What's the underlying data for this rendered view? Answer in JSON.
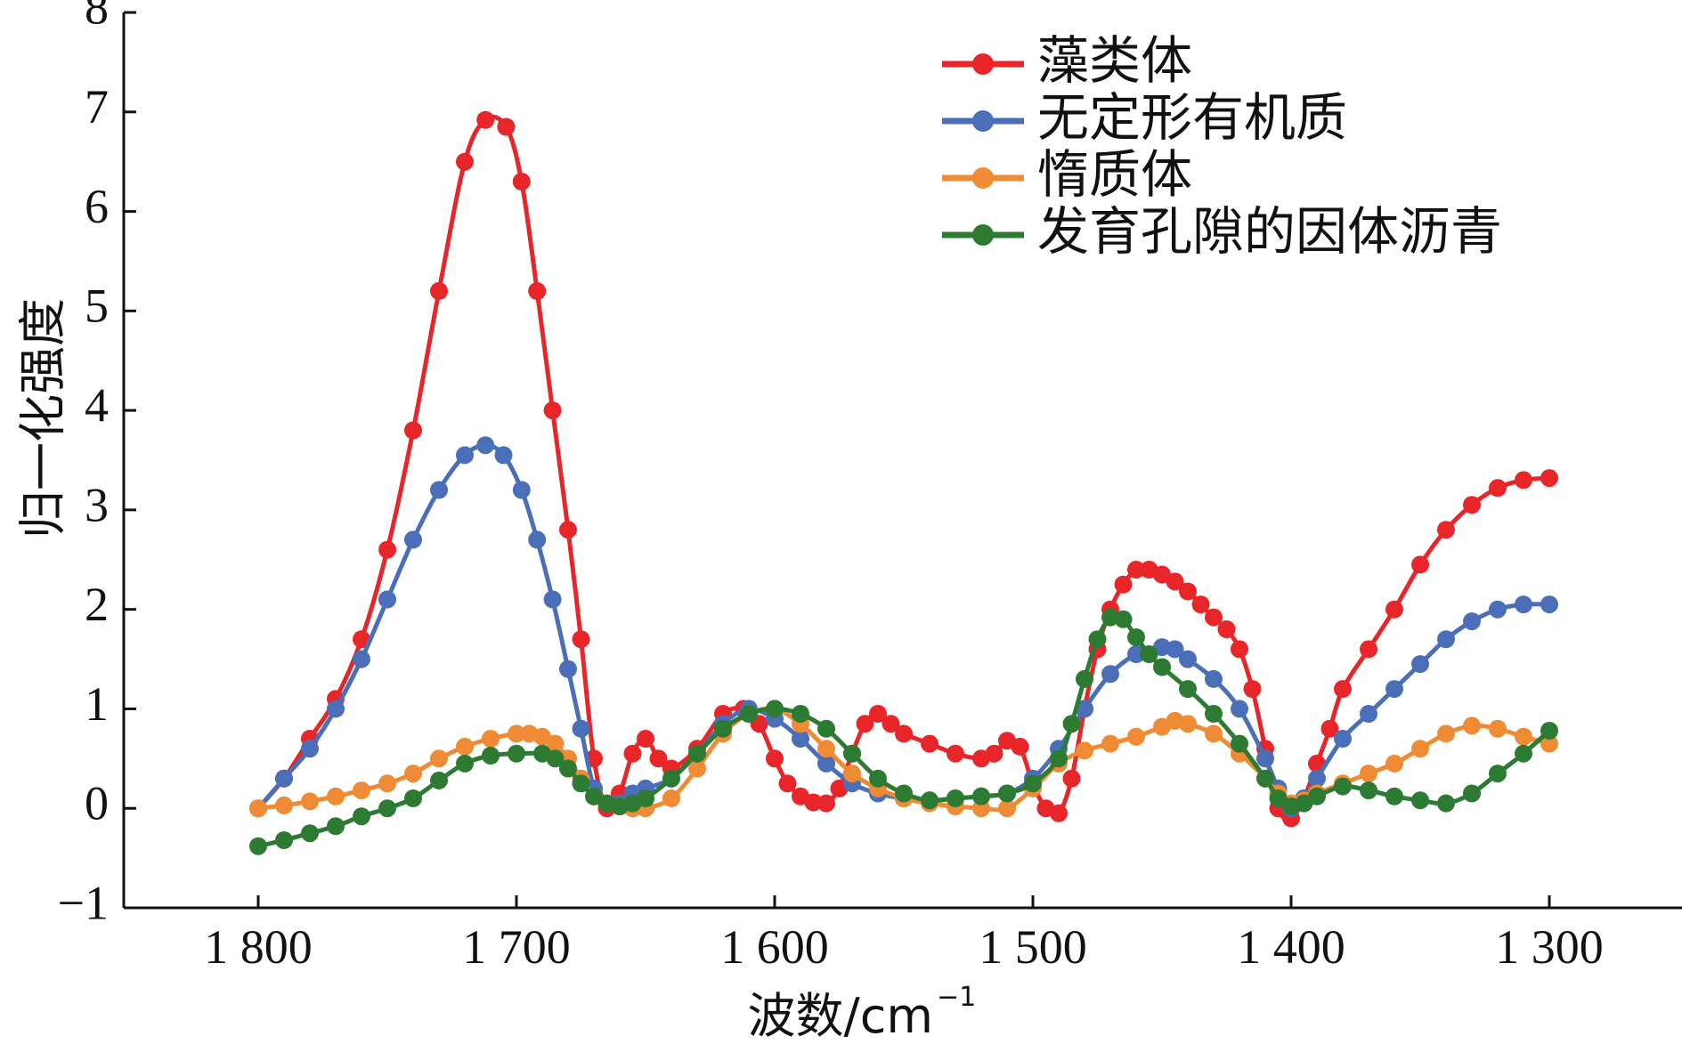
{
  "chart_data": {
    "type": "line",
    "title": "",
    "xlabel": "波数/cm",
    "xlabel_superscript": "−1",
    "ylabel": "归一化强度",
    "xlim": [
      1850,
      1250
    ],
    "ylim": [
      -1,
      8
    ],
    "x_reversed": true,
    "grid": false,
    "legend_position": "top-right",
    "x_ticks": [
      1800,
      1700,
      1600,
      1500,
      1400,
      1300
    ],
    "x_tick_labels": [
      "1 800",
      "1 700",
      "1 600",
      "1 500",
      "1 400",
      "1 300"
    ],
    "y_ticks": [
      -1,
      0,
      1,
      2,
      3,
      4,
      5,
      6,
      7,
      8
    ],
    "y_tick_labels": [
      "−1",
      "0",
      "1",
      "2",
      "3",
      "4",
      "5",
      "6",
      "7",
      "8"
    ],
    "series": [
      {
        "name": "藻类体",
        "color": "#e8262a",
        "x": [
          1800,
          1790,
          1780,
          1770,
          1760,
          1750,
          1740,
          1730,
          1720,
          1712,
          1704,
          1698,
          1692,
          1686,
          1680,
          1675,
          1670,
          1665,
          1660,
          1655,
          1650,
          1645,
          1640,
          1630,
          1620,
          1612,
          1606,
          1600,
          1595,
          1590,
          1585,
          1580,
          1575,
          1570,
          1565,
          1560,
          1555,
          1550,
          1540,
          1530,
          1520,
          1515,
          1510,
          1505,
          1500,
          1495,
          1490,
          1485,
          1480,
          1475,
          1470,
          1465,
          1460,
          1455,
          1450,
          1445,
          1440,
          1435,
          1430,
          1425,
          1420,
          1415,
          1410,
          1405,
          1400,
          1395,
          1390,
          1385,
          1380,
          1370,
          1360,
          1350,
          1340,
          1330,
          1320,
          1310,
          1300
        ],
        "y": [
          0.0,
          0.3,
          0.7,
          1.1,
          1.7,
          2.6,
          3.8,
          5.2,
          6.5,
          6.92,
          6.85,
          6.3,
          5.2,
          4.0,
          2.8,
          1.7,
          0.5,
          0.0,
          0.15,
          0.55,
          0.7,
          0.5,
          0.4,
          0.6,
          0.95,
          1.0,
          0.85,
          0.5,
          0.25,
          0.12,
          0.06,
          0.05,
          0.2,
          0.55,
          0.85,
          0.95,
          0.85,
          0.75,
          0.65,
          0.55,
          0.5,
          0.55,
          0.68,
          0.62,
          0.25,
          0.0,
          -0.05,
          0.3,
          1.0,
          1.6,
          2.0,
          2.25,
          2.4,
          2.4,
          2.35,
          2.28,
          2.18,
          2.05,
          1.92,
          1.8,
          1.6,
          1.2,
          0.6,
          0.0,
          -0.1,
          0.1,
          0.45,
          0.8,
          1.2,
          1.6,
          2.0,
          2.45,
          2.8,
          3.05,
          3.22,
          3.3,
          3.32
        ]
      },
      {
        "name": "无定形有机质",
        "color": "#4a6fb8",
        "x": [
          1800,
          1790,
          1780,
          1770,
          1760,
          1750,
          1740,
          1730,
          1720,
          1712,
          1705,
          1698,
          1692,
          1686,
          1680,
          1675,
          1670,
          1665,
          1660,
          1655,
          1650,
          1640,
          1630,
          1620,
          1610,
          1600,
          1590,
          1580,
          1570,
          1560,
          1550,
          1540,
          1530,
          1520,
          1510,
          1500,
          1490,
          1480,
          1470,
          1460,
          1450,
          1445,
          1440,
          1430,
          1420,
          1410,
          1405,
          1400,
          1395,
          1390,
          1380,
          1370,
          1360,
          1350,
          1340,
          1330,
          1320,
          1310,
          1300
        ],
        "y": [
          0.0,
          0.3,
          0.6,
          1.0,
          1.5,
          2.1,
          2.7,
          3.2,
          3.55,
          3.65,
          3.55,
          3.2,
          2.7,
          2.1,
          1.4,
          0.8,
          0.2,
          0.05,
          0.05,
          0.15,
          0.2,
          0.3,
          0.55,
          0.85,
          1.0,
          0.9,
          0.7,
          0.45,
          0.25,
          0.15,
          0.1,
          0.08,
          0.1,
          0.12,
          0.15,
          0.3,
          0.6,
          1.0,
          1.35,
          1.55,
          1.62,
          1.6,
          1.5,
          1.3,
          1.0,
          0.5,
          0.2,
          0.0,
          0.1,
          0.3,
          0.7,
          0.95,
          1.2,
          1.45,
          1.7,
          1.88,
          2.0,
          2.05,
          2.05
        ]
      },
      {
        "name": "惰质体",
        "color": "#ef8a35",
        "x": [
          1800,
          1790,
          1780,
          1770,
          1760,
          1750,
          1740,
          1730,
          1720,
          1710,
          1700,
          1695,
          1690,
          1685,
          1680,
          1675,
          1670,
          1665,
          1660,
          1655,
          1650,
          1640,
          1630,
          1620,
          1610,
          1600,
          1590,
          1580,
          1570,
          1560,
          1550,
          1540,
          1530,
          1520,
          1510,
          1500,
          1490,
          1480,
          1470,
          1460,
          1450,
          1445,
          1440,
          1430,
          1420,
          1410,
          1405,
          1400,
          1395,
          1390,
          1380,
          1370,
          1360,
          1350,
          1340,
          1330,
          1320,
          1310,
          1300
        ],
        "y": [
          0.0,
          0.03,
          0.07,
          0.12,
          0.18,
          0.25,
          0.35,
          0.5,
          0.62,
          0.7,
          0.75,
          0.75,
          0.72,
          0.65,
          0.5,
          0.3,
          0.12,
          0.05,
          0.02,
          0.0,
          0.0,
          0.1,
          0.4,
          0.75,
          0.95,
          1.0,
          0.85,
          0.6,
          0.35,
          0.2,
          0.1,
          0.05,
          0.02,
          0.0,
          0.0,
          0.2,
          0.45,
          0.58,
          0.65,
          0.72,
          0.82,
          0.88,
          0.85,
          0.75,
          0.55,
          0.3,
          0.15,
          0.05,
          0.08,
          0.15,
          0.25,
          0.35,
          0.45,
          0.6,
          0.75,
          0.83,
          0.8,
          0.72,
          0.65
        ]
      },
      {
        "name": "发育孔隙的因体沥青",
        "color": "#2d7a33",
        "x": [
          1800,
          1790,
          1780,
          1770,
          1760,
          1750,
          1740,
          1730,
          1720,
          1710,
          1700,
          1690,
          1685,
          1680,
          1675,
          1670,
          1665,
          1660,
          1655,
          1650,
          1640,
          1630,
          1620,
          1610,
          1600,
          1590,
          1580,
          1570,
          1560,
          1550,
          1540,
          1530,
          1520,
          1510,
          1500,
          1490,
          1485,
          1480,
          1475,
          1470,
          1465,
          1460,
          1455,
          1450,
          1440,
          1430,
          1420,
          1410,
          1405,
          1400,
          1395,
          1390,
          1380,
          1370,
          1360,
          1350,
          1340,
          1330,
          1320,
          1310,
          1300
        ],
        "y": [
          -0.38,
          -0.32,
          -0.25,
          -0.18,
          -0.08,
          0.0,
          0.1,
          0.28,
          0.45,
          0.53,
          0.55,
          0.55,
          0.5,
          0.4,
          0.25,
          0.12,
          0.05,
          0.02,
          0.05,
          0.1,
          0.3,
          0.55,
          0.8,
          0.95,
          1.0,
          0.95,
          0.8,
          0.55,
          0.3,
          0.15,
          0.08,
          0.1,
          0.12,
          0.15,
          0.25,
          0.5,
          0.85,
          1.3,
          1.7,
          1.92,
          1.9,
          1.72,
          1.55,
          1.42,
          1.2,
          0.95,
          0.65,
          0.3,
          0.1,
          0.02,
          0.05,
          0.12,
          0.22,
          0.18,
          0.12,
          0.08,
          0.05,
          0.15,
          0.35,
          0.55,
          0.78
        ]
      }
    ]
  }
}
